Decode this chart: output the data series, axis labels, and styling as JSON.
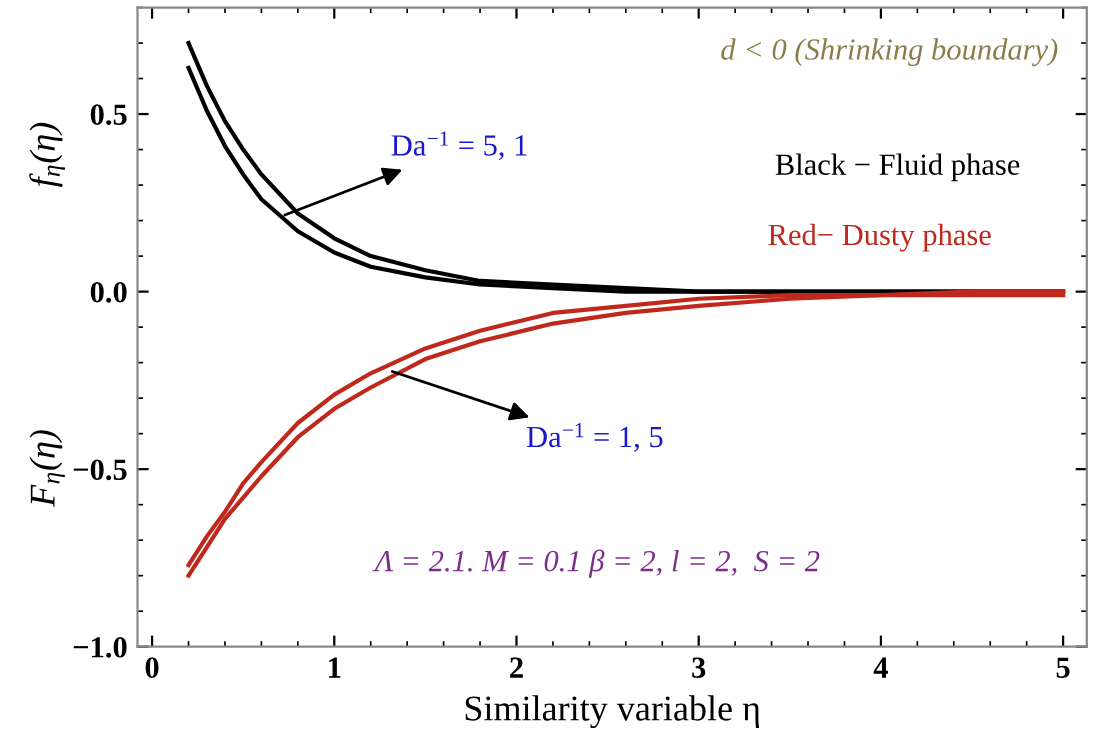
{
  "chart_data": {
    "type": "line",
    "xlabel": "Similarity variable η",
    "ylabel": "f$_{η}$(η)",
    "x": [
      0.2,
      0.3,
      0.4,
      0.5,
      0.6,
      0.8,
      1.0,
      1.2,
      1.5,
      1.8,
      2.2,
      2.6,
      3.0,
      3.5,
      4.0,
      4.5,
      5.0
    ],
    "series": [
      {
        "color": "#000000",
        "values": [
          0.7,
          0.58,
          0.48,
          0.4,
          0.33,
          0.22,
          0.15,
          0.1,
          0.06,
          0.03,
          0.02,
          0.01,
          0.0,
          0.0,
          0.0,
          0.0,
          0.0
        ]
      },
      {
        "color": "#000000",
        "values": [
          0.63,
          0.51,
          0.41,
          0.33,
          0.26,
          0.17,
          0.11,
          0.07,
          0.04,
          0.02,
          0.01,
          0.0,
          0.0,
          0.0,
          0.0,
          0.0,
          0.0
        ]
      },
      {
        "color": "#c0281c",
        "values": [
          -0.8,
          -0.72,
          -0.64,
          -0.58,
          -0.52,
          -0.41,
          -0.33,
          -0.27,
          -0.19,
          -0.14,
          -0.09,
          -0.06,
          -0.04,
          -0.02,
          -0.01,
          -0.01,
          -0.01
        ]
      },
      {
        "color": "#c0281c",
        "values": [
          -0.77,
          -0.69,
          -0.62,
          -0.54,
          -0.48,
          -0.37,
          -0.29,
          -0.23,
          -0.16,
          -0.11,
          -0.06,
          -0.04,
          -0.02,
          -0.01,
          -0.01,
          0.0,
          0.0
        ]
      }
    ],
    "xlim": [
      -0.08,
      5.13
    ],
    "ylim": [
      -1.0,
      0.8
    ],
    "xticks": [
      0,
      1,
      2,
      3,
      4,
      5
    ],
    "yticks": [
      {
        "value": -1.0,
        "label": "−1.0"
      },
      {
        "value": -0.5,
        "label": "−0.5"
      },
      {
        "value": 0.0,
        "label": "0.0"
      },
      {
        "value": 0.5,
        "label": "0.5"
      }
    ],
    "grid": false,
    "marker": "none",
    "line_style": "solid",
    "annotations": [
      {
        "text": "Da$^{−1}$ = 5, 1",
        "x": 0.7,
        "y": 0.21
      },
      {
        "text": "Da$^{−1}$ = 1, 5",
        "x": 1.29,
        "y": -0.22
      },
      "d < 0 (Shrinking boundary)",
      "Black − Fluid phase",
      "Red− Dusty phase",
      "Λ = 2.1. M = 0.1 β = 2, l = 2,  S = 2",
      "F$_{η}$(η)"
    ]
  }
}
